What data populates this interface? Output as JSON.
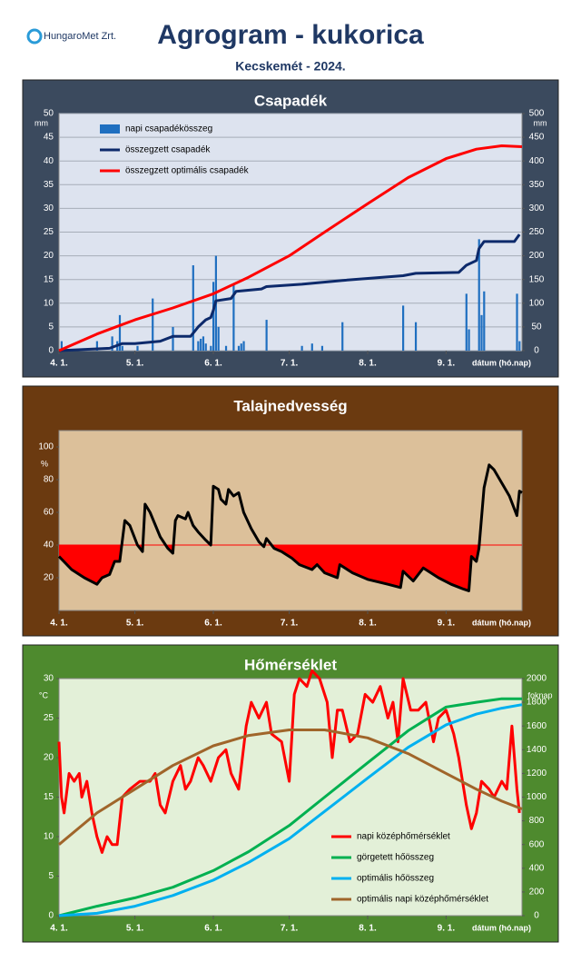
{
  "header": {
    "logo": "HungaroMet Zrt.",
    "title": "Agrogram - kukorica",
    "subtitle": "Kecskemét - 2024."
  },
  "chart_data": [
    {
      "type": "combo",
      "title": "Csapadék",
      "y_unit": "mm",
      "y2_unit": "mm",
      "xlabel": "dátum (hó.nap)",
      "xlim": [
        0,
        183
      ],
      "xticks": [
        {
          "value": 0,
          "label": "4. 1."
        },
        {
          "value": 30,
          "label": "5. 1."
        },
        {
          "value": 61,
          "label": "6. 1."
        },
        {
          "value": 91,
          "label": "7. 1."
        },
        {
          "value": 122,
          "label": "8. 1."
        },
        {
          "value": 153,
          "label": "9. 1."
        }
      ],
      "ylim": [
        0,
        50
      ],
      "yticks": [
        0,
        5,
        10,
        15,
        20,
        25,
        30,
        35,
        40,
        45,
        50
      ],
      "y2lim": [
        0,
        500
      ],
      "y2ticks": [
        0,
        50,
        100,
        150,
        200,
        250,
        300,
        350,
        400,
        450,
        500
      ],
      "grid": true,
      "legend": "top-left",
      "series": [
        {
          "name": "napi csapadékösszeg",
          "type": "bar",
          "color": "#1f6fc0",
          "x": [
            1,
            15,
            21,
            23,
            24,
            25,
            31,
            37,
            45,
            53,
            55,
            56,
            57,
            58,
            60,
            61,
            62,
            63,
            66,
            69,
            71,
            72,
            73,
            82,
            96,
            100,
            104,
            112,
            136,
            141,
            161,
            162,
            166,
            167,
            168,
            181,
            182
          ],
          "values": [
            2,
            2,
            3,
            2,
            7.5,
            1,
            1,
            11,
            5,
            18,
            2,
            2.5,
            3,
            1.5,
            1,
            14.5,
            20,
            5,
            1,
            14,
            1,
            1.5,
            2,
            6.5,
            1,
            1.5,
            1,
            6,
            9.5,
            6,
            12,
            4.5,
            23.5,
            7.5,
            12.5,
            12,
            2
          ]
        },
        {
          "name": "összegzett csapadék",
          "type": "line",
          "axis": "y2",
          "color": "#0d2a6b",
          "width": 3,
          "x": [
            0,
            20,
            25,
            30,
            40,
            45,
            52,
            55,
            58,
            60,
            61,
            62,
            68,
            70,
            80,
            82,
            96,
            112,
            136,
            141,
            158,
            161,
            165,
            166,
            168,
            180,
            182
          ],
          "values": [
            0,
            5,
            15,
            15,
            20,
            30,
            30,
            50,
            65,
            70,
            85,
            105,
            110,
            125,
            130,
            135,
            140,
            148,
            158,
            163,
            165,
            180,
            190,
            215,
            230,
            230,
            245
          ]
        },
        {
          "name": "összegzett optimális csapadék",
          "type": "line",
          "axis": "y2",
          "color": "#ff0000",
          "width": 3,
          "x": [
            0,
            15,
            30,
            45,
            61,
            75,
            91,
            105,
            122,
            138,
            153,
            165,
            175,
            183
          ],
          "values": [
            0,
            35,
            65,
            90,
            120,
            155,
            200,
            250,
            310,
            365,
            405,
            425,
            432,
            430
          ]
        }
      ]
    },
    {
      "type": "line",
      "title": "Talajnedvesség",
      "y_unit": "%",
      "xlabel": "dátum (hó.nap)",
      "xlim": [
        0,
        183
      ],
      "xticks": [
        {
          "value": 0,
          "label": "4. 1."
        },
        {
          "value": 30,
          "label": "5. 1."
        },
        {
          "value": 61,
          "label": "6. 1."
        },
        {
          "value": 91,
          "label": "7. 1."
        },
        {
          "value": 122,
          "label": "8. 1."
        },
        {
          "value": 153,
          "label": "9. 1."
        }
      ],
      "ylim": [
        0,
        110
      ],
      "yticks": [
        20,
        40,
        60,
        80,
        100
      ],
      "grid": false,
      "threshold": 40,
      "threshold_color": "#ff0000",
      "series": [
        {
          "color": "#000000",
          "width": 3,
          "x": [
            0,
            5,
            10,
            15,
            17,
            20,
            22,
            24,
            26,
            28,
            31,
            33,
            34,
            36,
            40,
            43,
            45,
            46,
            47,
            50,
            51,
            53,
            55,
            58,
            60,
            61,
            63,
            64,
            66,
            67,
            69,
            71,
            73,
            76,
            79,
            81,
            82,
            85,
            88,
            92,
            95,
            100,
            102,
            105,
            110,
            111,
            116,
            122,
            130,
            135,
            136,
            140,
            144,
            150,
            155,
            160,
            162,
            163,
            165,
            166,
            168,
            170,
            172,
            175,
            178,
            181,
            182,
            183
          ],
          "values": [
            33,
            25,
            20,
            16,
            20,
            22,
            30,
            30,
            55,
            52,
            40,
            36,
            65,
            60,
            45,
            38,
            35,
            55,
            58,
            56,
            60,
            52,
            48,
            43,
            40,
            76,
            74,
            68,
            65,
            74,
            70,
            72,
            60,
            50,
            42,
            39,
            44,
            38,
            36,
            32,
            28,
            25,
            28,
            23,
            20,
            28,
            23,
            19,
            16,
            14,
            24,
            18,
            26,
            20,
            16,
            13,
            12,
            33,
            30,
            38,
            75,
            89,
            86,
            78,
            70,
            58,
            73,
            72
          ]
        }
      ]
    },
    {
      "type": "line",
      "title": "Hőmérséklet",
      "y_unit": "°C",
      "y2_unit": "foknap",
      "xlabel": "dátum (hó.nap)",
      "xlim": [
        0,
        183
      ],
      "xticks": [
        {
          "value": 0,
          "label": "4. 1."
        },
        {
          "value": 30,
          "label": "5. 1."
        },
        {
          "value": 61,
          "label": "6. 1."
        },
        {
          "value": 91,
          "label": "7. 1."
        },
        {
          "value": 122,
          "label": "8. 1."
        },
        {
          "value": 153,
          "label": "9. 1."
        }
      ],
      "ylim": [
        0,
        30
      ],
      "yticks": [
        0,
        5,
        10,
        15,
        20,
        25,
        30
      ],
      "y2lim": [
        0,
        2000
      ],
      "y2ticks": [
        0,
        200,
        400,
        600,
        800,
        1000,
        1200,
        1400,
        1600,
        1800,
        2000
      ],
      "grid": false,
      "legend": "bottom-right",
      "series": [
        {
          "name": "napi középhőmérséklet",
          "color": "#ff0000",
          "width": 3,
          "x": [
            0,
            1,
            2,
            4,
            6,
            8,
            9,
            11,
            13,
            15,
            17,
            19,
            21,
            23,
            25,
            28,
            32,
            36,
            38,
            40,
            42,
            45,
            48,
            50,
            52,
            55,
            57,
            60,
            63,
            66,
            68,
            71,
            74,
            76,
            79,
            82,
            84,
            88,
            91,
            93,
            95,
            98,
            100,
            103,
            106,
            108,
            110,
            112,
            115,
            118,
            121,
            124,
            127,
            130,
            132,
            134,
            136,
            139,
            142,
            145,
            148,
            150,
            153,
            156,
            158,
            161,
            163,
            165,
            167,
            170,
            172,
            175,
            177,
            179,
            181,
            182
          ],
          "values": [
            22,
            15,
            13,
            18,
            17,
            18,
            15,
            17,
            13,
            10,
            8,
            10,
            9,
            9,
            15,
            16,
            17,
            17,
            18,
            14,
            13,
            17,
            19,
            16,
            17,
            20,
            19,
            17,
            20,
            21,
            18,
            16,
            24,
            27,
            25,
            27,
            23,
            22,
            17,
            28,
            30,
            29,
            31,
            30,
            27,
            20,
            26,
            26,
            22,
            23,
            28,
            27,
            29,
            25,
            27,
            22,
            30,
            26,
            26,
            27,
            22,
            25,
            26,
            23,
            20,
            14,
            11,
            13,
            17,
            16,
            15,
            17,
            16,
            24,
            16,
            13
          ]
        },
        {
          "name": "görgetett hőösszeg",
          "axis": "y2",
          "color": "#00b050",
          "width": 3,
          "x": [
            0,
            15,
            30,
            45,
            61,
            75,
            91,
            105,
            122,
            138,
            153,
            165,
            175,
            183
          ],
          "values": [
            0,
            80,
            150,
            240,
            380,
            540,
            760,
            1000,
            1290,
            1560,
            1760,
            1800,
            1830,
            1830
          ]
        },
        {
          "name": "optimális hőösszeg",
          "axis": "y2",
          "color": "#00b0f0",
          "width": 3,
          "x": [
            0,
            15,
            30,
            45,
            61,
            75,
            91,
            105,
            122,
            138,
            153,
            165,
            175,
            183
          ],
          "values": [
            0,
            20,
            80,
            170,
            300,
            450,
            650,
            880,
            1160,
            1420,
            1610,
            1700,
            1750,
            1780
          ]
        },
        {
          "name": "optimális napi középhőmérséklet",
          "color": "#a0652a",
          "width": 3,
          "x": [
            0,
            15,
            30,
            45,
            61,
            75,
            91,
            105,
            122,
            138,
            153,
            165,
            175,
            183
          ],
          "values": [
            9,
            13,
            16,
            19,
            21.5,
            22.8,
            23.5,
            23.5,
            22.5,
            20.5,
            18,
            16,
            14.5,
            13.5
          ]
        }
      ]
    }
  ]
}
